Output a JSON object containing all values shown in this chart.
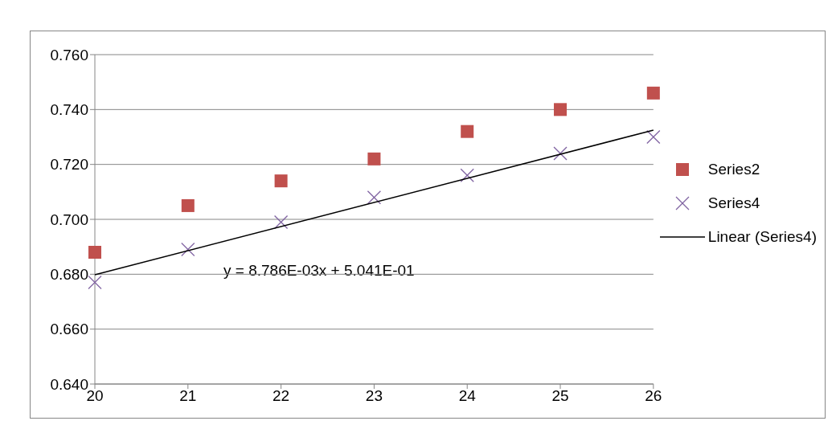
{
  "chart_data": {
    "type": "scatter",
    "xlim": [
      20,
      26
    ],
    "xticks": [
      20,
      21,
      22,
      23,
      24,
      25,
      26
    ],
    "ylim": [
      0.64,
      0.76
    ],
    "yticks": [
      {
        "value": 0.64,
        "label": "0.640"
      },
      {
        "value": 0.66,
        "label": "0.660"
      },
      {
        "value": 0.68,
        "label": "0.680"
      },
      {
        "value": 0.7,
        "label": "0.700"
      },
      {
        "value": 0.72,
        "label": "0.720"
      },
      {
        "value": 0.74,
        "label": "0.740"
      },
      {
        "value": 0.76,
        "label": "0.760"
      }
    ],
    "x": [
      20,
      21,
      22,
      23,
      24,
      25,
      26
    ],
    "series": [
      {
        "name": "Series2",
        "color": "#c0504d",
        "marker": "square",
        "values": [
          0.688,
          0.705,
          0.714,
          0.722,
          0.732,
          0.74,
          0.746
        ]
      },
      {
        "name": "Series4",
        "color": "#8064a2",
        "marker": "cross",
        "values": [
          0.677,
          0.689,
          0.699,
          0.708,
          0.716,
          0.724,
          0.73
        ]
      },
      {
        "name": "Linear (Series4)",
        "type": "line",
        "color": "#000000",
        "x": [
          20,
          26
        ],
        "values": [
          0.6798,
          0.7325
        ]
      }
    ],
    "annotations": [
      "y = 8.786E-03x + 5.041E-01"
    ],
    "grid": "y",
    "legend": "right"
  }
}
